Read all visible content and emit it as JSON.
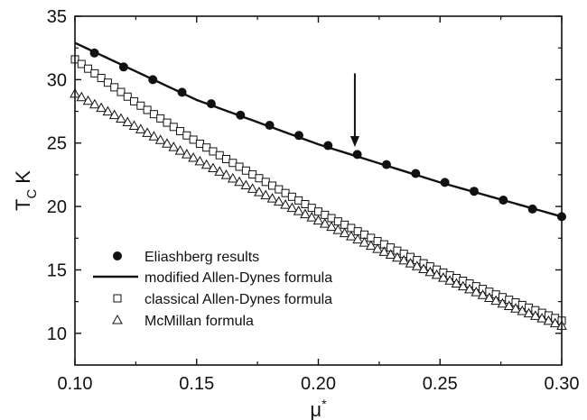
{
  "chart_data": {
    "type": "scatter",
    "xlabel": "μ",
    "xlabel_superscript": "*",
    "ylabel": "T",
    "ylabel_subscript": "C",
    "ylabel_unit": "K",
    "xlim": [
      0.1,
      0.3
    ],
    "ylim": [
      7.5,
      35
    ],
    "x_ticks": [
      0.1,
      0.15,
      0.2,
      0.25,
      0.3
    ],
    "x_tick_labels": [
      "0.10",
      "0.15",
      "0.20",
      "0.25",
      "0.30"
    ],
    "y_ticks": [
      10,
      15,
      20,
      25,
      30,
      35
    ],
    "y_tick_labels": [
      "10",
      "15",
      "20",
      "25",
      "30",
      "35"
    ],
    "grid": false,
    "legend_position": "bottom-left",
    "annotation": {
      "type": "arrow",
      "x": 0.215,
      "y_from": 30.5,
      "y_to": 24.2
    },
    "series": [
      {
        "name": "Eliashberg results",
        "style": "filled-circle",
        "x": [
          0.108,
          0.12,
          0.132,
          0.144,
          0.156,
          0.168,
          0.18,
          0.192,
          0.204,
          0.216,
          0.228,
          0.24,
          0.252,
          0.264,
          0.276,
          0.288,
          0.3
        ],
        "y": [
          32.1,
          31.0,
          30.0,
          29.0,
          28.1,
          27.2,
          26.4,
          25.6,
          24.8,
          24.1,
          23.3,
          22.6,
          21.9,
          21.2,
          20.5,
          19.8,
          19.2
        ]
      },
      {
        "name": "modified Allen-Dynes formula",
        "style": "solid-line",
        "x": [
          0.1,
          0.15,
          0.2,
          0.25,
          0.3
        ],
        "y": [
          32.9,
          28.4,
          24.9,
          21.9,
          19.2
        ]
      },
      {
        "name": "classical Allen-Dynes formula",
        "style": "open-square",
        "x": [
          0.1,
          0.125,
          0.15,
          0.175,
          0.2,
          0.225,
          0.25,
          0.275,
          0.3
        ],
        "y": [
          31.6,
          28.2,
          25.1,
          22.3,
          19.6,
          17.2,
          14.9,
          12.9,
          11.0
        ]
      },
      {
        "name": "McMillan formula",
        "style": "open-triangle",
        "x": [
          0.1,
          0.125,
          0.15,
          0.175,
          0.2,
          0.225,
          0.25,
          0.275,
          0.3
        ],
        "y": [
          28.9,
          26.3,
          23.7,
          21.2,
          18.9,
          16.6,
          14.5,
          12.4,
          10.6
        ]
      }
    ]
  }
}
